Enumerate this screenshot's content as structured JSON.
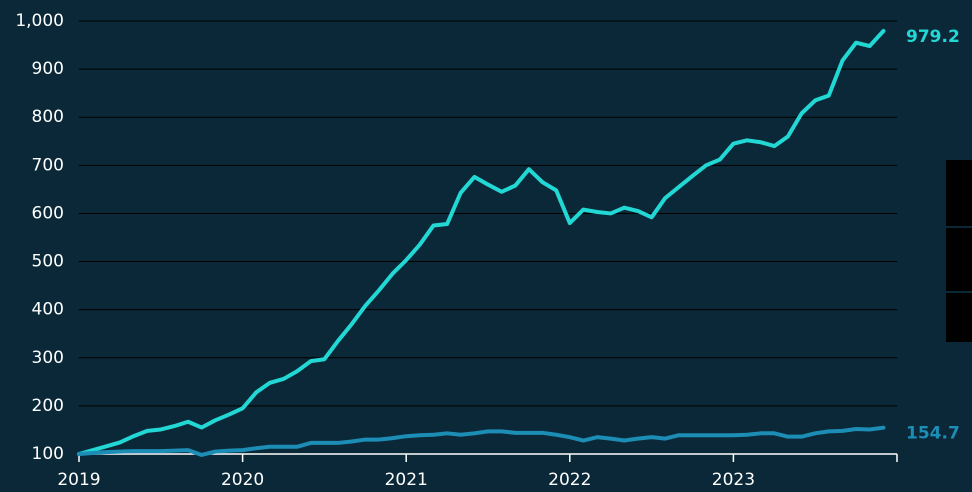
{
  "chart_data": {
    "type": "line",
    "x": [
      2019,
      2019.083,
      2019.167,
      2019.25,
      2019.333,
      2019.417,
      2019.5,
      2019.583,
      2019.667,
      2019.75,
      2019.833,
      2019.917,
      2020,
      2020.083,
      2020.167,
      2020.25,
      2020.333,
      2020.417,
      2020.5,
      2020.583,
      2020.667,
      2020.75,
      2020.833,
      2020.917,
      2021,
      2021.083,
      2021.167,
      2021.25,
      2021.333,
      2021.417,
      2021.5,
      2021.583,
      2021.667,
      2021.75,
      2021.833,
      2021.917,
      2022,
      2022.083,
      2022.167,
      2022.25,
      2022.333,
      2022.417,
      2022.5,
      2022.583,
      2022.667,
      2022.75,
      2022.833,
      2022.917,
      2023,
      2023.083,
      2023.167,
      2023.25,
      2023.333,
      2023.417,
      2023.5,
      2023.583,
      2023.667,
      2023.75,
      2023.833,
      2023.917
    ],
    "series": [
      {
        "color": "#22d8d4",
        "values": [
          100,
          108,
          116,
          124,
          137,
          148,
          151,
          158,
          167,
          155,
          170,
          182,
          195,
          228,
          248,
          256,
          272,
          293,
          297,
          335,
          370,
          408,
          440,
          475,
          503,
          535,
          575,
          578,
          643,
          676,
          660,
          645,
          658,
          692,
          665,
          648,
          580,
          608,
          603,
          600,
          612,
          605,
          592,
          632,
          655,
          678,
          700,
          712,
          745,
          752,
          748,
          740,
          760,
          808,
          835,
          845,
          918,
          955,
          948,
          979.2
        ]
      },
      {
        "color": "#1c8db5",
        "values": [
          100,
          102,
          104,
          105,
          106,
          106,
          106,
          107,
          108,
          98,
          105,
          107,
          108,
          112,
          115,
          115,
          115,
          123,
          123,
          123,
          126,
          130,
          130,
          133,
          137,
          139,
          140,
          143,
          140,
          143,
          147,
          147,
          144,
          144,
          144,
          140,
          135,
          128,
          135,
          132,
          128,
          132,
          135,
          132,
          139,
          139,
          139,
          139,
          139,
          140,
          143,
          143,
          136,
          136,
          143,
          147,
          148,
          152,
          151,
          154.7
        ]
      }
    ],
    "xlim": [
      2019,
      2024
    ],
    "xticks": [
      2019,
      2020,
      2021,
      2022,
      2023
    ],
    "ylim": [
      100,
      1000
    ],
    "yticks": [
      100,
      200,
      300,
      400,
      500,
      600,
      700,
      800,
      900,
      {
        "value": 1000,
        "label": "1,000"
      }
    ],
    "grid": true
  }
}
